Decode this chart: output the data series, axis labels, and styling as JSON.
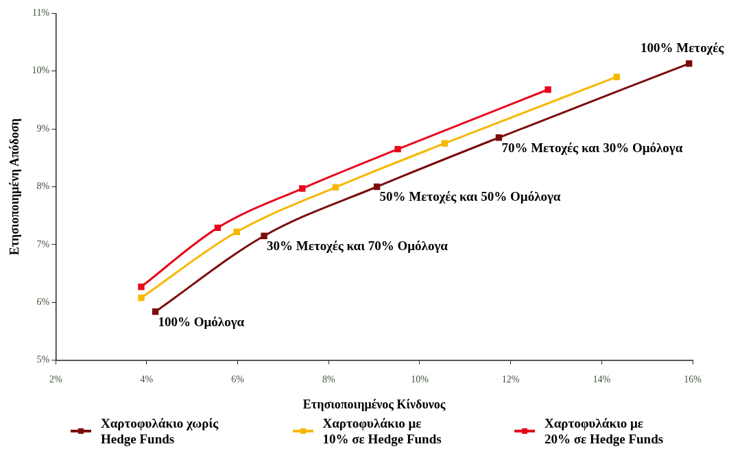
{
  "chart_data": {
    "type": "line",
    "xlabel": "Ετησιοποιημένος Κίνδυνος",
    "ylabel": "Ετησιοποιημένη Απόδοση",
    "xlim": [
      2,
      16
    ],
    "ylim": [
      5,
      11
    ],
    "xticks": [
      {
        "value": 2,
        "label": "2%"
      },
      {
        "value": 4,
        "label": "4%"
      },
      {
        "value": 6,
        "label": "6%"
      },
      {
        "value": 8,
        "label": "8%"
      },
      {
        "value": 10,
        "label": "10%"
      },
      {
        "value": 12,
        "label": "12%"
      },
      {
        "value": 14,
        "label": "14%"
      },
      {
        "value": 16,
        "label": "16%"
      }
    ],
    "yticks": [
      {
        "value": 5,
        "label": "5%"
      },
      {
        "value": 6,
        "label": "6%"
      },
      {
        "value": 7,
        "label": "7%"
      },
      {
        "value": 8,
        "label": "8%"
      },
      {
        "value": 9,
        "label": "9%"
      },
      {
        "value": 10,
        "label": "10%"
      },
      {
        "value": 11,
        "label": "11%"
      }
    ],
    "grid": false,
    "legend": "bottom",
    "marker": "square",
    "line_style": "solid",
    "series": [
      {
        "name": "Χαρτοφυλάκιο χωρίς Hedge Funds",
        "color": "#7b0c0c",
        "x": [
          4.19,
          6.58,
          9.06,
          11.74,
          15.92
        ],
        "values": [
          5.84,
          7.15,
          8.0,
          8.85,
          10.13
        ]
      },
      {
        "name": "Χαρτοφυλάκιο με 10% σε Hedge Funds",
        "color": "#f5b800",
        "x": [
          3.88,
          5.98,
          8.15,
          10.55,
          14.33
        ],
        "values": [
          6.08,
          7.22,
          7.99,
          8.75,
          9.9
        ]
      },
      {
        "name": "Χαρτοφυλάκιο με 20% σε Hedge Funds",
        "color": "#e8081c",
        "x": [
          3.88,
          5.56,
          7.42,
          9.52,
          12.82
        ],
        "values": [
          6.27,
          7.29,
          7.97,
          8.65,
          9.68
        ]
      }
    ],
    "annotations": [
      {
        "text": "100% Ομόλογα",
        "x": 4.19,
        "y": 5.84
      },
      {
        "text": "30% Μετοχές και 70% Ομόλογα",
        "x": 6.58,
        "y": 7.15
      },
      {
        "text": "50% Μετοχές και 50% Ομόλογα",
        "x": 9.06,
        "y": 8.0
      },
      {
        "text": "70% Μετοχές και 30% Ομόλογα",
        "x": 11.74,
        "y": 8.85
      },
      {
        "text": "100% Μετοχές",
        "x": 15.92,
        "y": 10.13
      }
    ]
  }
}
